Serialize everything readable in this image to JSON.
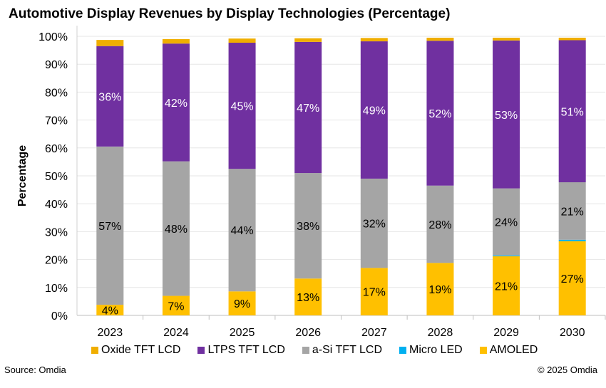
{
  "chart_data": {
    "type": "stacked-bar",
    "title": "Automotive Display Revenues by Display Technologies (Percentage)",
    "xlabel": "",
    "ylabel": "Percentage",
    "ylim": [
      0,
      100
    ],
    "yticks": [
      "0%",
      "10%",
      "20%",
      "30%",
      "40%",
      "50%",
      "60%",
      "70%",
      "80%",
      "90%",
      "100%"
    ],
    "grid": true,
    "legend_position": "bottom",
    "categories": [
      "2023",
      "2024",
      "2025",
      "2026",
      "2027",
      "2028",
      "2029",
      "2030"
    ],
    "series": [
      {
        "name": "AMOLED",
        "color": "#FFC000",
        "values": [
          3.8,
          7,
          8.6,
          13.2,
          17,
          18.8,
          21.2,
          26.6
        ],
        "labels": [
          "4%",
          "7%",
          "9%",
          "13%",
          "17%",
          "19%",
          "21%",
          "27%"
        ]
      },
      {
        "name": "Micro LED",
        "color": "#00B0F0",
        "values": [
          0,
          0,
          0,
          0,
          0,
          0,
          0.3,
          0.5
        ],
        "labels": []
      },
      {
        "name": "a-Si TFT LCD",
        "color": "#A5A5A5",
        "values": [
          56.7,
          48.2,
          43.9,
          37.8,
          32,
          27.7,
          24,
          20.6
        ],
        "labels": [
          "57%",
          "48%",
          "44%",
          "38%",
          "32%",
          "28%",
          "24%",
          "21%"
        ]
      },
      {
        "name": "LTPS TFT LCD",
        "color": "#7030A0",
        "values": [
          36,
          42.2,
          45.2,
          47,
          49.2,
          51.9,
          53,
          50.9
        ],
        "labels": [
          "36%",
          "42%",
          "45%",
          "47%",
          "49%",
          "52%",
          "53%",
          "51%"
        ]
      },
      {
        "name": "Oxide TFT LCD",
        "color": "#F0AE00",
        "values": [
          2.2,
          1.6,
          1.5,
          1.3,
          1.2,
          1.1,
          1.0,
          0.9
        ],
        "labels": []
      }
    ],
    "legend_order": [
      "Oxide TFT LCD",
      "LTPS TFT LCD",
      "a-Si TFT LCD",
      "Micro LED",
      "AMOLED"
    ]
  },
  "footer": {
    "source": "Source: Omdia",
    "copyright": "© 2025 Omdia"
  }
}
